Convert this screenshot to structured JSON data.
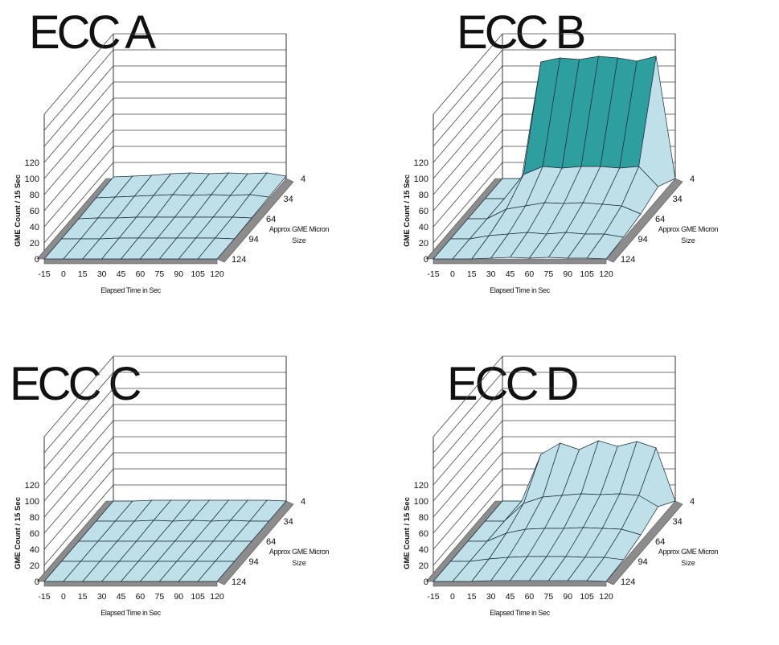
{
  "chart_data": [
    {
      "type": "surface3d",
      "title": "ECC A",
      "xlabel": "Elapsed Time in Sec",
      "ylabel": "GME Count / 15 Sec",
      "zlabel": "Approx GME Micron Size",
      "x_ticks": [
        "-15",
        "0",
        "15",
        "30",
        "45",
        "60",
        "75",
        "90",
        "105",
        "120"
      ],
      "depth_ticks": [
        "4",
        "34",
        "64",
        "94",
        "124"
      ],
      "y_ticks": [
        "0",
        "20",
        "40",
        "60",
        "80",
        "100",
        "120"
      ],
      "ylim": [
        0,
        180
      ],
      "band_colors": [
        "#bfe0e8",
        "#2e3fa8",
        "#2f9e9e",
        "#a8cf2e",
        "#7f7f7f",
        "#111111"
      ],
      "surface": [
        [
          2,
          3,
          4,
          6,
          7,
          6,
          7,
          6,
          7,
          3
        ],
        [
          1,
          2,
          3,
          4,
          5,
          4,
          5,
          4,
          5,
          2
        ],
        [
          0,
          1,
          1,
          2,
          2,
          2,
          2,
          2,
          2,
          1
        ],
        [
          0,
          0,
          0,
          1,
          1,
          1,
          1,
          1,
          1,
          0
        ],
        [
          0,
          0,
          0,
          0,
          0,
          0,
          0,
          0,
          0,
          0
        ]
      ]
    },
    {
      "type": "surface3d",
      "title": "ECC B",
      "xlabel": "Elapsed Time in Sec",
      "ylabel": "GME Count / 15 Sec",
      "zlabel": "Approx GME Micron Size",
      "x_ticks": [
        "-15",
        "0",
        "15",
        "30",
        "45",
        "60",
        "75",
        "90",
        "105",
        "120"
      ],
      "depth_ticks": [
        "4",
        "34",
        "64",
        "94",
        "124"
      ],
      "y_ticks": [
        "0",
        "20",
        "40",
        "60",
        "80",
        "100",
        "120"
      ],
      "ylim": [
        0,
        180
      ],
      "band_colors": [
        "#bfe0e8",
        "#2e3fa8",
        "#2f9e9e",
        "#a8cf2e",
        "#7f7f7f",
        "#111111"
      ],
      "surface": [
        [
          0,
          0,
          145,
          150,
          148,
          152,
          150,
          146,
          152,
          0
        ],
        [
          0,
          0,
          30,
          40,
          38,
          40,
          40,
          38,
          40,
          15
        ],
        [
          0,
          0,
          12,
          16,
          20,
          19,
          20,
          18,
          16,
          6
        ],
        [
          0,
          0,
          4,
          6,
          8,
          6,
          8,
          6,
          6,
          2
        ],
        [
          0,
          0,
          0,
          1,
          2,
          1,
          2,
          1,
          1,
          0
        ]
      ]
    },
    {
      "type": "surface3d",
      "title": "ECC C",
      "xlabel": "Elapsed Time in Sec",
      "ylabel": "GME Count / 15 Sec",
      "zlabel": "Approx GME Micron Size",
      "x_ticks": [
        "-15",
        "0",
        "15",
        "30",
        "45",
        "60",
        "75",
        "90",
        "105",
        "120"
      ],
      "depth_ticks": [
        "4",
        "34",
        "64",
        "94",
        "124"
      ],
      "y_ticks": [
        "0",
        "20",
        "40",
        "60",
        "80",
        "100",
        "120"
      ],
      "ylim": [
        0,
        180
      ],
      "band_colors": [
        "#bfe0e8",
        "#2e3fa8",
        "#2f9e9e",
        "#a8cf2e",
        "#7f7f7f",
        "#111111"
      ],
      "surface": [
        [
          0,
          0,
          1,
          1,
          1,
          1,
          1,
          1,
          1,
          0
        ],
        [
          0,
          0,
          0,
          1,
          0,
          1,
          0,
          1,
          0,
          0
        ],
        [
          0,
          0,
          0,
          0,
          0,
          0,
          0,
          0,
          0,
          0
        ],
        [
          0,
          0,
          0,
          0,
          0,
          0,
          0,
          0,
          0,
          0
        ],
        [
          0,
          0,
          0,
          0,
          0,
          0,
          0,
          0,
          0,
          0
        ]
      ]
    },
    {
      "type": "surface3d",
      "title": "ECC D",
      "xlabel": "Elapsed Time in Sec",
      "ylabel": "GME Count / 15 Sec",
      "zlabel": "Approx GME Micron Size",
      "x_ticks": [
        "-15",
        "0",
        "15",
        "30",
        "45",
        "60",
        "75",
        "90",
        "105",
        "120"
      ],
      "depth_ticks": [
        "4",
        "34",
        "64",
        "94",
        "124"
      ],
      "y_ticks": [
        "0",
        "20",
        "40",
        "60",
        "80",
        "100",
        "120"
      ],
      "ylim": [
        0,
        180
      ],
      "band_colors": [
        "#bfe0e8",
        "#2e3fa8",
        "#2f9e9e",
        "#a8cf2e",
        "#7f7f7f",
        "#111111"
      ],
      "surface": [
        [
          0,
          0,
          58,
          72,
          64,
          75,
          68,
          74,
          66,
          0
        ],
        [
          0,
          0,
          22,
          30,
          32,
          34,
          33,
          34,
          32,
          18
        ],
        [
          0,
          0,
          10,
          15,
          16,
          16,
          17,
          16,
          15,
          8
        ],
        [
          0,
          0,
          3,
          5,
          6,
          6,
          6,
          5,
          5,
          2
        ],
        [
          0,
          0,
          0,
          1,
          1,
          1,
          1,
          1,
          1,
          0
        ]
      ]
    }
  ]
}
